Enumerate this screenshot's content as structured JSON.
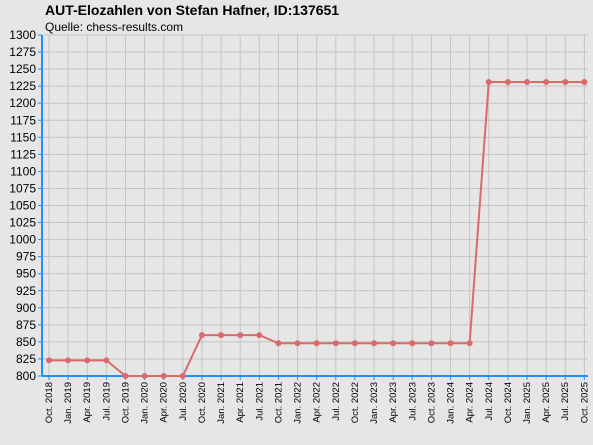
{
  "chart_data": {
    "type": "line",
    "title": "AUT-Elozahlen von Stefan Hafner, ID:137651",
    "subtitle": "Quelle: chess-results.com",
    "xlabel": "",
    "ylabel": "",
    "ylim": [
      800,
      1300
    ],
    "ytick_step": 25,
    "grid": true,
    "categories": [
      "Oct. 2018",
      "Jan. 2019",
      "Apr. 2019",
      "Jul. 2019",
      "Oct. 2019",
      "Jan. 2020",
      "Apr. 2020",
      "Jul. 2020",
      "Oct. 2020",
      "Jan. 2021",
      "Apr. 2021",
      "Jul. 2021",
      "Oct. 2021",
      "Jan. 2022",
      "Apr. 2022",
      "Jul. 2022",
      "Oct. 2022",
      "Jan. 2023",
      "Apr. 2023",
      "Jul. 2023",
      "Oct. 2023",
      "Jan. 2024",
      "Apr. 2024",
      "Jul. 2024",
      "Oct. 2024",
      "Jan. 2025",
      "Apr. 2025",
      "Jul. 2025",
      "Oct. 2025"
    ],
    "series": [
      {
        "name": "",
        "color": "#d96b6b",
        "values": [
          823,
          823,
          823,
          823,
          800,
          800,
          800,
          800,
          860,
          860,
          860,
          860,
          848,
          848,
          848,
          848,
          848,
          848,
          848,
          848,
          848,
          848,
          848,
          1231,
          1231,
          1231,
          1231,
          1231,
          1231
        ]
      }
    ],
    "colors": {
      "background": "#e6e6e6",
      "grid": "#c4c4c4",
      "axis": "#1e90ff"
    }
  }
}
